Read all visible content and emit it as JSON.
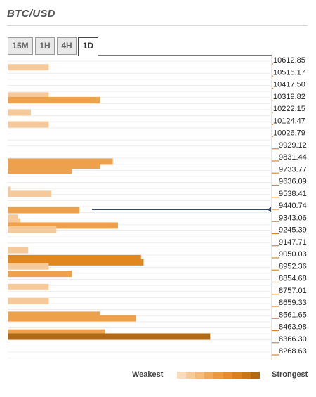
{
  "title": "BTC/USD",
  "tabs": [
    {
      "label": "15M",
      "active": false
    },
    {
      "label": "1H",
      "active": false
    },
    {
      "label": "4H",
      "active": false
    },
    {
      "label": "1D",
      "active": true
    }
  ],
  "legend": {
    "weakest": "Weakest",
    "strongest": "Strongest"
  },
  "colors": {
    "weak": "#f6c99a",
    "medium": "#eda14d",
    "strong": "#e0871f",
    "strongest": "#b06914",
    "current_price_line": "#2f4a62",
    "grid": "#ececec",
    "tick": "#d88a2a"
  },
  "chart_data": {
    "type": "bar",
    "orientation": "horizontal",
    "price_levels": [
      "10612.85",
      "10515.17",
      "10417.50",
      "10319.82",
      "10222.15",
      "10124.47",
      "10026.79",
      "9929.12",
      "9831.44",
      "9733.77",
      "9636.09",
      "9538.41",
      "9440.74",
      "9343.06",
      "9245.39",
      "9147.71",
      "9050.03",
      "8952.36",
      "8854.68",
      "8757.01",
      "8659.33",
      "8561.65",
      "8463.98",
      "8366.30",
      "8268.63"
    ],
    "bars": [
      {
        "price": 10552,
        "value": 16,
        "strength": "weak"
      },
      {
        "price": 10325,
        "value": 16,
        "strength": "weak"
      },
      {
        "price": 10288,
        "value": 36,
        "strength": "medium"
      },
      {
        "price": 10189,
        "value": 9,
        "strength": "weak"
      },
      {
        "price": 10092,
        "value": 16,
        "strength": "weak"
      },
      {
        "price": 9792,
        "value": 41,
        "strength": "medium"
      },
      {
        "price": 9760,
        "value": 36,
        "strength": "medium"
      },
      {
        "price": 9720,
        "value": 25,
        "strength": "medium"
      },
      {
        "price": 9565,
        "value": 1,
        "strength": "weak"
      },
      {
        "price": 9532,
        "value": 17,
        "strength": "weak"
      },
      {
        "price": 9401,
        "value": 28,
        "strength": "medium"
      },
      {
        "price": 9340,
        "value": 4,
        "strength": "weak"
      },
      {
        "price": 9310,
        "value": 5,
        "strength": "weak"
      },
      {
        "price": 9277,
        "value": 43,
        "strength": "medium"
      },
      {
        "price": 9245,
        "value": 19,
        "strength": "weak"
      },
      {
        "price": 9078,
        "value": 8,
        "strength": "weak"
      },
      {
        "price": 9014,
        "value": 52,
        "strength": "strong"
      },
      {
        "price": 8980,
        "value": 53,
        "strength": "strong"
      },
      {
        "price": 8947,
        "value": 16,
        "strength": "weak"
      },
      {
        "price": 8888,
        "value": 25,
        "strength": "medium"
      },
      {
        "price": 8782,
        "value": 16,
        "strength": "weak"
      },
      {
        "price": 8668,
        "value": 16,
        "strength": "weak"
      },
      {
        "price": 8558,
        "value": 36,
        "strength": "medium"
      },
      {
        "price": 8529,
        "value": 50,
        "strength": "medium"
      },
      {
        "price": 8415,
        "value": 38,
        "strength": "medium"
      },
      {
        "price": 8382,
        "value": 79,
        "strength": "strongest"
      }
    ],
    "current_price": 9405,
    "ylim": [
      8250,
      10640
    ],
    "xlim": [
      0,
      100
    ]
  }
}
